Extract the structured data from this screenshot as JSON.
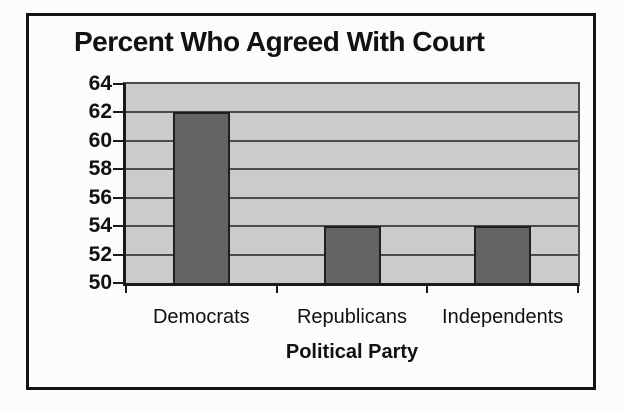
{
  "chart_data": {
    "type": "bar",
    "title": "Percent Who Agreed With Court",
    "xlabel": "Political Party",
    "ylabel": "",
    "categories": [
      "Democrats",
      "Republicans",
      "Independents"
    ],
    "values": [
      62,
      54,
      54
    ],
    "ylim": [
      50,
      64
    ],
    "yticks": [
      50,
      52,
      54,
      56,
      58,
      60,
      62,
      64
    ],
    "grid": "horizontal",
    "legend": "none",
    "colors": {
      "bar_fill": "#646464",
      "bar_border": "#1f1f1f",
      "plot_bg": "#cbcbcb",
      "gridline": "#4c4c4c",
      "axis": "#1a1a1a",
      "frame_border": "#141414",
      "canvas_bg": "#fcfcfc",
      "text": "#111111"
    }
  }
}
